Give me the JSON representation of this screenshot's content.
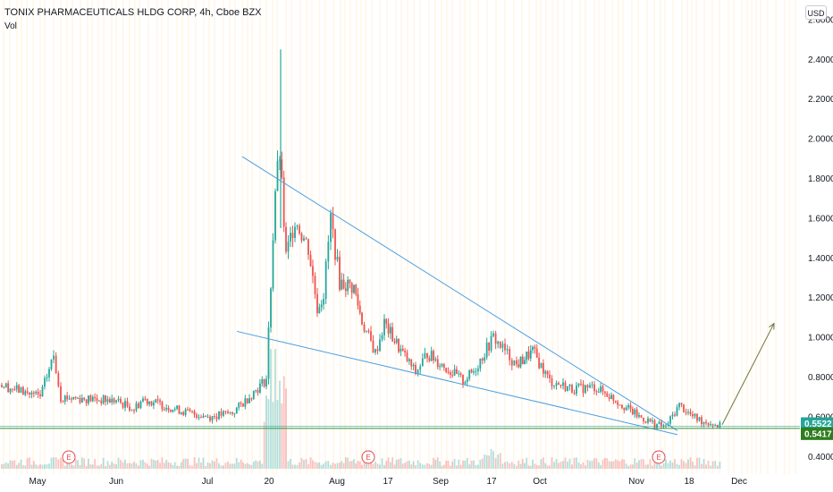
{
  "header": {
    "title": "TONIX PHARMACEUTICALS HLDG CORP, 4h, Cboe BZX",
    "indicator": "Vol",
    "currency_button": "USD"
  },
  "colors": {
    "up": "#26a69a",
    "down": "#ef5350",
    "trendline": "#4a9fe0",
    "arrow": "#6b7a3a",
    "support": "#3a8d2a",
    "last_price_bg": "#26a69a",
    "support_bg": "#2e7d1e",
    "earnings": "#e0474c",
    "grid_vertical": "#fff0d9"
  },
  "chart_data": {
    "type": "candlestick",
    "symbol": "TONIX PHARMACEUTICALS HLDG CORP",
    "interval": "4h",
    "exchange": "Cboe BZX",
    "y_axis": {
      "ylim": [
        0.35,
        2.62
      ],
      "ticks": [
        "0.4000",
        "0.6000",
        "0.8000",
        "1.0000",
        "1.2000",
        "1.4000",
        "1.6000",
        "1.8000",
        "2.0000",
        "2.2000",
        "2.4000",
        "2.6000"
      ]
    },
    "x_axis": {
      "ticks": [
        "May",
        "Jun",
        "Jul",
        "20",
        "Aug",
        "17",
        "Sep",
        "17",
        "Oct",
        "Nov",
        "18",
        "Dec"
      ]
    },
    "price_badges": [
      {
        "label": "0.5522",
        "value": 0.5522,
        "kind": "last-price"
      },
      {
        "label": "0.5417",
        "value": 0.5417,
        "kind": "support"
      }
    ],
    "support_level": 0.5417,
    "earnings_markers": [
      {
        "label": "E",
        "date": "May"
      },
      {
        "label": "E",
        "date": "Aug"
      },
      {
        "label": "E",
        "date": "Nov"
      }
    ],
    "drawings": {
      "wedge_upper": {
        "from": {
          "date": "Jul",
          "price": 1.91
        },
        "to": {
          "date": "Nov",
          "price": 0.53
        }
      },
      "wedge_lower": {
        "from": {
          "date": "Jul",
          "price": 1.03
        },
        "to": {
          "date": "Nov",
          "price": 0.51
        }
      },
      "breakout_arrow": {
        "from": {
          "date": "Nov",
          "price": 0.56
        },
        "to": {
          "date": "Dec",
          "price": 1.07
        }
      }
    },
    "series": [
      {
        "name": "Price",
        "anchors": [
          {
            "date": "Apr",
            "price": 0.76
          },
          {
            "date": "May",
            "price": 0.7
          },
          {
            "date": "May",
            "price": 0.91
          },
          {
            "date": "May",
            "price": 0.7
          },
          {
            "date": "Jun",
            "price": 0.68
          },
          {
            "date": "Jun",
            "price": 0.64
          },
          {
            "date": "Jun",
            "price": 0.69
          },
          {
            "date": "Jul",
            "price": 0.62
          },
          {
            "date": "Jul",
            "price": 0.6
          },
          {
            "date": "Jul",
            "price": 0.62
          },
          {
            "date": "Jul",
            "price": 0.67
          },
          {
            "date": "Jul",
            "price": 0.79
          },
          {
            "date": "20",
            "price": 1.75
          },
          {
            "date": "20",
            "price": 1.92
          },
          {
            "date": "20",
            "price": 1.4
          },
          {
            "date": "Jul",
            "price": 1.6
          },
          {
            "date": "Jul",
            "price": 1.45
          },
          {
            "date": "Jul",
            "price": 1.15
          },
          {
            "date": "Jul",
            "price": 1.22
          },
          {
            "date": "Jul",
            "price": 1.6
          },
          {
            "date": "Jul",
            "price": 1.28
          },
          {
            "date": "Aug",
            "price": 1.25
          },
          {
            "date": "Aug",
            "price": 1.08
          },
          {
            "date": "Aug",
            "price": 0.92
          },
          {
            "date": "Aug",
            "price": 1.07
          },
          {
            "date": "17",
            "price": 0.95
          },
          {
            "date": "17",
            "price": 0.82
          },
          {
            "date": "17",
            "price": 0.92
          },
          {
            "date": "Sep",
            "price": 0.78
          },
          {
            "date": "Sep",
            "price": 0.83
          },
          {
            "date": "17",
            "price": 1.0
          },
          {
            "date": "17",
            "price": 0.93
          },
          {
            "date": "17",
            "price": 0.86
          },
          {
            "date": "17",
            "price": 0.93
          },
          {
            "date": "Oct",
            "price": 0.78
          },
          {
            "date": "Oct",
            "price": 0.74
          },
          {
            "date": "Oct",
            "price": 0.75
          },
          {
            "date": "Oct",
            "price": 0.7
          },
          {
            "date": "Nov",
            "price": 0.6
          },
          {
            "date": "Nov",
            "price": 0.56
          },
          {
            "date": "Nov",
            "price": 0.55
          },
          {
            "date": "18",
            "price": 0.66
          },
          {
            "date": "18",
            "price": 0.6
          },
          {
            "date": "18",
            "price": 0.58
          },
          {
            "date": "18",
            "price": 0.57
          },
          {
            "date": "Dec",
            "price": 0.55
          }
        ]
      }
    ]
  }
}
